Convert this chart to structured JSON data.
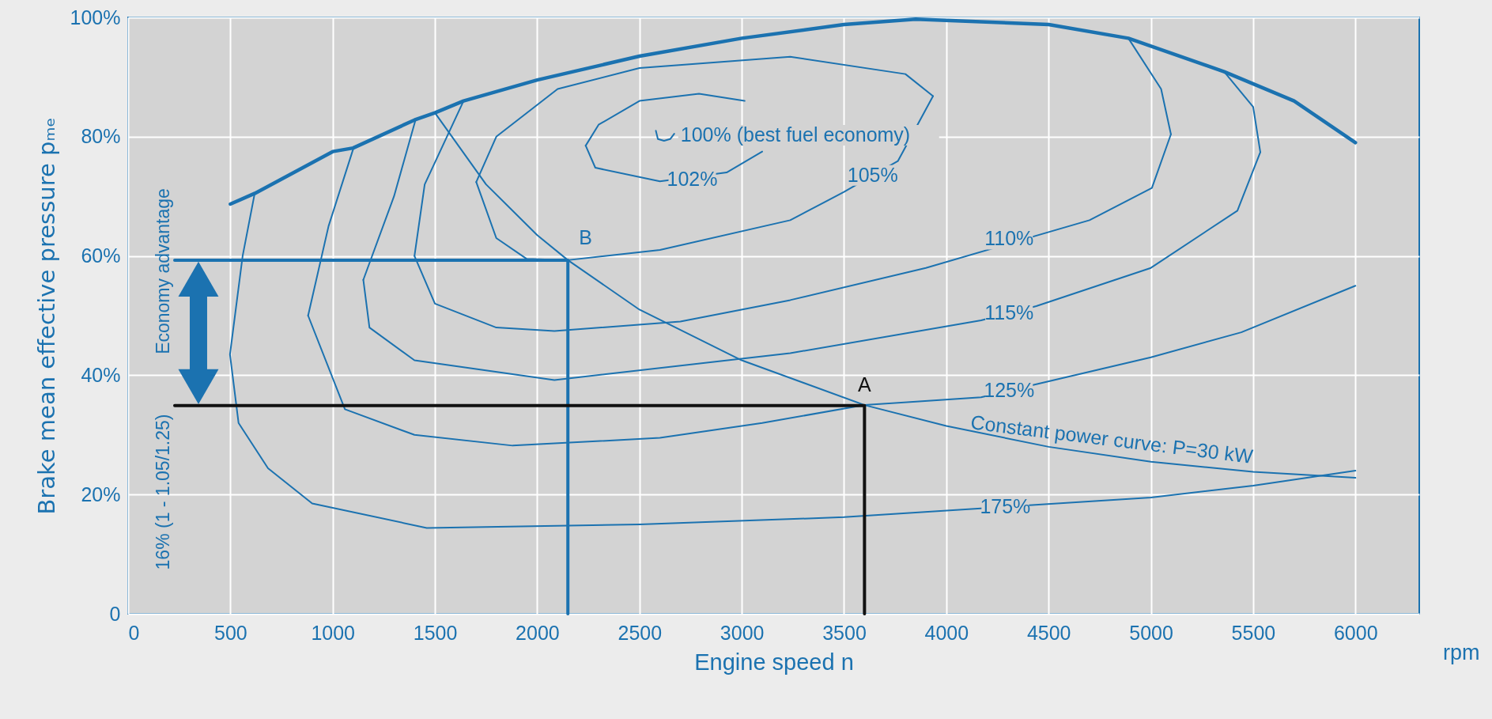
{
  "chart_data": {
    "type": "line",
    "xlabel": "Engine speed n",
    "ylabel": "Brake mean effective pressure pₘₑ",
    "xlim": [
      0,
      6312
    ],
    "ylim": [
      0,
      100
    ],
    "xticks": [
      0,
      500,
      1000,
      1500,
      2000,
      2500,
      3000,
      3500,
      4000,
      4500,
      5000,
      5500,
      6000
    ],
    "yticks": [
      0,
      {
        "value": 20,
        "label": "20%"
      },
      {
        "value": 40,
        "label": "40%"
      },
      {
        "value": 60,
        "label": "60%"
      },
      {
        "value": 80,
        "label": "80%"
      },
      {
        "value": 100,
        "label": "100%"
      }
    ],
    "grid": true,
    "marker": "none",
    "line_style": "solid",
    "series": [
      {
        "color": "#1b72b0",
        "x": [
          500,
          620,
          1000,
          1100,
          1400,
          1500,
          1640,
          2000,
          2500,
          3000,
          3500,
          3850,
          4500,
          4890,
          5358,
          5700,
          6000
        ],
        "values": [
          68.7,
          70.5,
          77.5,
          78.1,
          82.8,
          84,
          86,
          89.5,
          93.5,
          96.5,
          98.8,
          99.7,
          98.8,
          96.5,
          90.9,
          86,
          79
        ]
      },
      {
        "color": "#1b72b0",
        "x": [
          2580,
          2590,
          2620,
          2650,
          2670
        ],
        "values": [
          81,
          79.6,
          79.3,
          79.6,
          80.5
        ]
      },
      {
        "color": "#1b72b0",
        "x": [
          3014,
          2791,
          2500,
          2300,
          2237
        ],
        "values": [
          86,
          87.2,
          86,
          82,
          78.5
        ]
      },
      {
        "color": "#1b72b0",
        "x": [
          2237,
          2284,
          2600,
          2926,
          3100
        ],
        "values": [
          78.5,
          74.8,
          72.5,
          74,
          77.5
        ]
      },
      {
        "color": "#1b72b0",
        "x": [
          1702,
          1800,
          1949,
          2150,
          2600,
          3237,
          3498,
          3763,
          3935
        ],
        "values": [
          72.4,
          63,
          59.5,
          59.3,
          61,
          66,
          70.7,
          75.9,
          86.8
        ]
      },
      {
        "color": "#1b72b0",
        "x": [
          3935,
          3800,
          3237,
          2500,
          2100,
          1800,
          1702
        ],
        "values": [
          86.8,
          90.5,
          93.4,
          91.5,
          88,
          80,
          72.4
        ]
      },
      {
        "color": "#1b72b0",
        "x": [
          1640,
          1450,
          1400
        ],
        "values": [
          86,
          72,
          60
        ]
      },
      {
        "color": "#1b72b0",
        "x": [
          1400,
          1500,
          1800,
          2084,
          2700,
          3237,
          3900,
          4700,
          5005,
          5098
        ],
        "values": [
          60,
          52,
          48,
          47.4,
          49,
          52.6,
          58,
          66,
          71.4,
          80.4
        ]
      },
      {
        "color": "#1b72b0",
        "x": [
          5098,
          5050,
          4890
        ],
        "values": [
          80.4,
          88,
          96.5
        ]
      },
      {
        "color": "#1b72b0",
        "x": [
          1405,
          1300,
          1150
        ],
        "values": [
          82.8,
          70,
          56
        ]
      },
      {
        "color": "#1b72b0",
        "x": [
          1150,
          1180,
          1400,
          2084,
          3237,
          4170,
          4440,
          5000,
          5423,
          5535
        ],
        "values": [
          56,
          48,
          42.5,
          39.2,
          43.7,
          49.2,
          51.6,
          58,
          67.6,
          77.4
        ]
      },
      {
        "color": "#1b72b0",
        "x": [
          5535,
          5500,
          5358
        ],
        "values": [
          77.4,
          85,
          90.9
        ]
      },
      {
        "color": "#1b72b0",
        "x": [
          1102,
          980,
          880
        ],
        "values": [
          78.1,
          65,
          50
        ]
      },
      {
        "color": "#1b72b0",
        "x": [
          880,
          1060,
          1400,
          1880,
          2600,
          3100,
          3600,
          4170,
          4440,
          5000,
          5442,
          6000
        ],
        "values": [
          50,
          34.3,
          30,
          28.2,
          29.5,
          32,
          35,
          36.3,
          38.5,
          43,
          47.2,
          55
        ]
      },
      {
        "color": "#1b72b0",
        "x": [
          619,
          560,
          498,
          540,
          684,
          900,
          1460,
          2500,
          3500,
          5000,
          5500,
          6000
        ],
        "values": [
          70.5,
          60,
          43.5,
          32,
          24.4,
          18.5,
          14.4,
          15,
          16.2,
          19.5,
          21.5,
          24
        ]
      },
      {
        "color": "#1b72b0",
        "x": [
          1500,
          1750,
          2000,
          2150,
          2500,
          3000,
          3600,
          4000,
          4500,
          5000,
          5500,
          6000
        ],
        "values": [
          84,
          72,
          63.5,
          59.3,
          51,
          42.5,
          35,
          31.5,
          28,
          25.5,
          23.8,
          22.8
        ]
      },
      {
        "color": "#1b72b0",
        "x": [
          228,
          2150,
          2150
        ],
        "values": [
          59.3,
          59.3,
          0
        ]
      },
      {
        "color": "#111111",
        "x": [
          228,
          3600,
          3600
        ],
        "values": [
          34.9,
          34.9,
          0
        ]
      }
    ],
    "annotations": [
      {
        "text": "100% (best fuel economy)",
        "x": 2670,
        "y": 80.5
      },
      {
        "text": "102%",
        "x": 2758,
        "y": 72.8
      },
      {
        "text": "105%",
        "x": 3640,
        "y": 73.5
      },
      {
        "text": "110%",
        "x": 4307,
        "y": 62.8
      },
      {
        "text": "115%",
        "x": 4307,
        "y": 50.4
      },
      {
        "text": "125%",
        "x": 4307,
        "y": 37.4
      },
      {
        "text": "175%",
        "x": 4288,
        "y": 17.9
      },
      {
        "text": "Constant power curve: P=30 kW",
        "x": 4800,
        "y": 26.8
      },
      {
        "text": "B",
        "x": 2150,
        "y": 59.3
      },
      {
        "text": "A",
        "x": 3600,
        "y": 34.9
      },
      "Economy advantage",
      "16% (1 - 1.05/1.25)",
      "rpm"
    ]
  }
}
